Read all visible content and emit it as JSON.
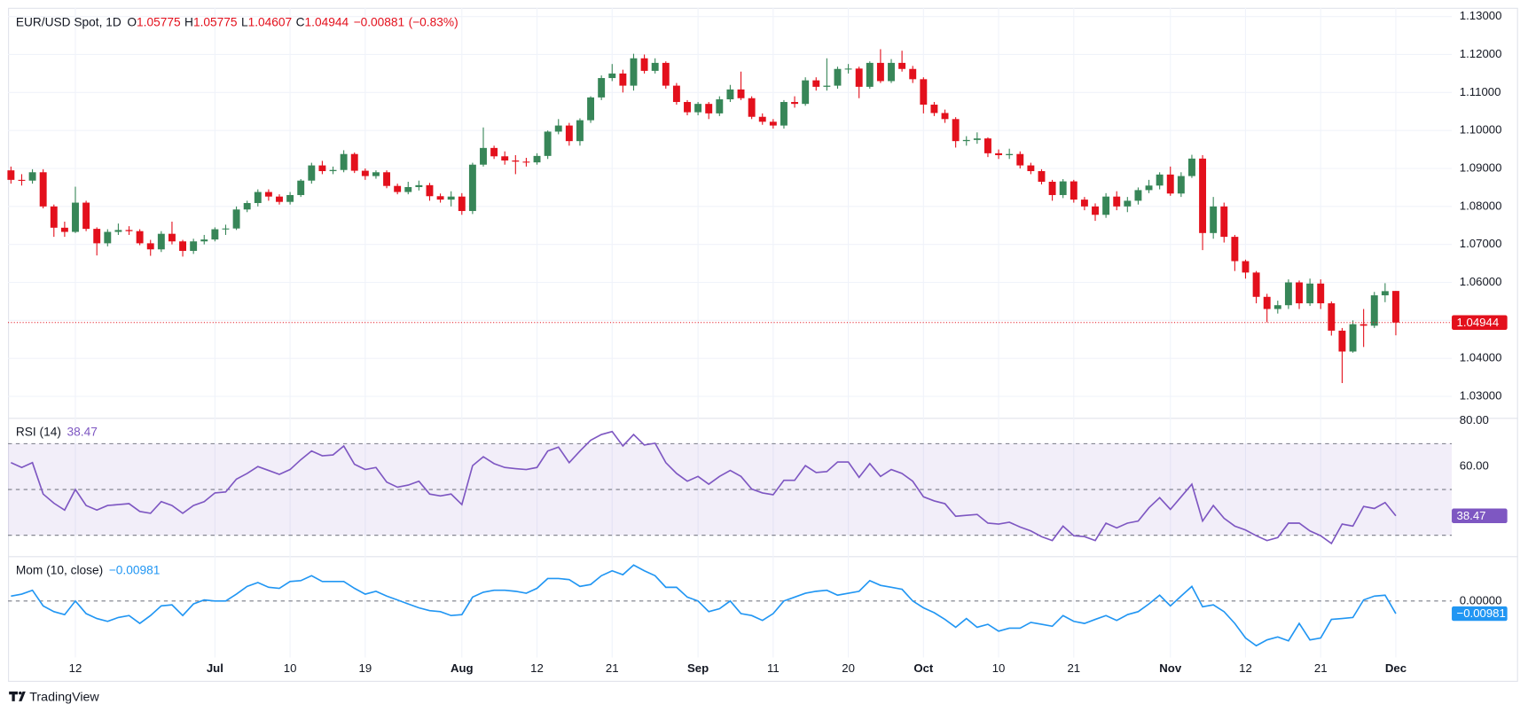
{
  "brand": "TradingView",
  "chart_data": [
    {
      "type": "candlestick",
      "title": "EUR/USD Spot, 1D",
      "ohlc_labels": [
        "O",
        "H",
        "L",
        "C"
      ],
      "change": "−0.00881",
      "change_percent": "(−0.83%)",
      "up_color": "#378658",
      "down_color": "#e3101c",
      "grid": true,
      "ylim": [
        1.0246,
        1.1323
      ],
      "yticks": [
        {
          "value": 1.03,
          "label": "1.03000"
        },
        {
          "value": 1.04,
          "label": "1.04000"
        },
        {
          "value": 1.05,
          "label": "1.05000"
        },
        {
          "value": 1.06,
          "label": "1.06000"
        },
        {
          "value": 1.07,
          "label": "1.07000"
        },
        {
          "value": 1.08,
          "label": "1.08000"
        },
        {
          "value": 1.09,
          "label": "1.09000"
        },
        {
          "value": 1.1,
          "label": "1.10000"
        },
        {
          "value": 1.11,
          "label": "1.11000"
        },
        {
          "value": 1.12,
          "label": "1.12000"
        },
        {
          "value": 1.13,
          "label": "1.13000"
        }
      ],
      "categories": [
        null,
        null,
        null,
        null,
        null,
        null,
        "12",
        null,
        null,
        null,
        null,
        null,
        null,
        null,
        null,
        null,
        null,
        null,
        null,
        "Jul",
        null,
        null,
        null,
        null,
        null,
        null,
        "10",
        null,
        null,
        null,
        null,
        null,
        null,
        "19",
        null,
        null,
        null,
        null,
        null,
        null,
        null,
        null,
        "Aug",
        null,
        null,
        null,
        null,
        null,
        null,
        "12",
        null,
        null,
        null,
        null,
        null,
        null,
        "21",
        null,
        null,
        null,
        null,
        null,
        null,
        null,
        "Sep",
        null,
        null,
        null,
        null,
        null,
        null,
        "11",
        null,
        null,
        null,
        null,
        null,
        null,
        "20",
        null,
        null,
        null,
        null,
        null,
        null,
        "Oct",
        null,
        null,
        null,
        null,
        null,
        null,
        "10",
        null,
        null,
        null,
        null,
        null,
        null,
        "21",
        null,
        null,
        null,
        null,
        null,
        null,
        null,
        null,
        "Nov",
        null,
        null,
        null,
        null,
        null,
        null,
        "12",
        null,
        null,
        null,
        null,
        null,
        null,
        "21",
        null,
        null,
        null,
        null,
        null,
        null,
        "Dec"
      ],
      "open": [
        1.0895,
        1.087,
        1.0868,
        1.089,
        1.08,
        1.0744,
        1.0733,
        1.081,
        1.0741,
        1.0703,
        1.0733,
        1.0738,
        1.0735,
        1.0703,
        1.0687,
        1.0728,
        1.0708,
        1.0683,
        1.0708,
        1.0713,
        1.074,
        1.0742,
        1.0792,
        1.0809,
        1.0838,
        1.0826,
        1.0812,
        1.083,
        1.0868,
        1.0908,
        1.0893,
        1.0896,
        1.0938,
        1.0894,
        1.088,
        1.089,
        1.0854,
        1.0838,
        1.0851,
        1.0856,
        1.0827,
        1.0818,
        1.0826,
        1.0788,
        1.091,
        1.0954,
        1.0932,
        1.0921,
        1.0918,
        1.0916,
        1.0933,
        1.0997,
        1.1013,
        1.0972,
        1.1027,
        1.1087,
        1.1138,
        1.115,
        1.1118,
        1.119,
        1.1157,
        1.1178,
        1.1118,
        1.1075,
        1.1048,
        1.107,
        1.1045,
        1.1082,
        1.1108,
        1.1085,
        1.1036,
        1.1023,
        1.1013,
        1.1075,
        1.107,
        1.1132,
        1.1115,
        1.1118,
        1.1162,
        1.1163,
        1.1115,
        1.1178,
        1.113,
        1.1178,
        1.1162,
        1.1135,
        1.1068,
        1.1046,
        1.103,
        1.0972,
        1.0975,
        1.0979,
        1.094,
        1.0935,
        1.0938,
        1.0908,
        1.0893,
        1.0865,
        1.083,
        1.0866,
        1.0818,
        1.08,
        1.0778,
        1.0826,
        1.08,
        1.0815,
        1.0843,
        1.0855,
        1.0884,
        1.0834,
        1.088,
        1.0926,
        1.073,
        1.08,
        1.072,
        1.0656,
        1.0626,
        1.0562,
        1.053,
        1.054,
        1.06,
        1.0545,
        1.0597,
        1.0545,
        1.0473,
        1.0418,
        1.049,
        1.0486,
        1.0566,
        1.05775
      ],
      "high": [
        1.0905,
        1.0885,
        1.0898,
        1.0898,
        1.0805,
        1.076,
        1.0852,
        1.0815,
        1.0745,
        1.074,
        1.0755,
        1.0748,
        1.074,
        1.0712,
        1.0735,
        1.076,
        1.0712,
        1.0715,
        1.0725,
        1.0745,
        1.0752,
        1.08,
        1.0815,
        1.0845,
        1.0845,
        1.0832,
        1.0838,
        1.0872,
        1.0915,
        1.092,
        1.0905,
        1.0948,
        1.0942,
        1.09,
        1.0895,
        1.0895,
        1.086,
        1.0865,
        1.0868,
        1.0862,
        1.0834,
        1.084,
        1.0835,
        1.0915,
        1.1008,
        1.096,
        1.0945,
        1.0935,
        1.0928,
        1.094,
        1.1,
        1.103,
        1.102,
        1.1032,
        1.109,
        1.1145,
        1.1175,
        1.116,
        1.1202,
        1.12,
        1.119,
        1.1182,
        1.1125,
        1.108,
        1.1075,
        1.1075,
        1.109,
        1.112,
        1.1155,
        1.109,
        1.1045,
        1.103,
        1.108,
        1.109,
        1.114,
        1.114,
        1.119,
        1.1168,
        1.1175,
        1.1168,
        1.1182,
        1.1214,
        1.1188,
        1.121,
        1.117,
        1.114,
        1.1075,
        1.1055,
        1.1035,
        1.0985,
        1.0995,
        1.0982,
        1.095,
        1.0952,
        1.0945,
        1.0915,
        1.0898,
        1.087,
        1.0872,
        1.087,
        1.0825,
        1.0808,
        1.0835,
        1.084,
        1.0825,
        1.085,
        1.087,
        1.089,
        1.0905,
        1.089,
        1.0936,
        1.0935,
        1.0825,
        1.081,
        1.0725,
        1.066,
        1.063,
        1.057,
        1.0552,
        1.0608,
        1.0605,
        1.061,
        1.0608,
        1.055,
        1.048,
        1.05,
        1.053,
        1.0575,
        1.0598,
        1.05775
      ],
      "low": [
        1.086,
        1.0855,
        1.086,
        1.0795,
        1.072,
        1.072,
        1.073,
        1.0735,
        1.0671,
        1.0695,
        1.0725,
        1.0725,
        1.0698,
        1.067,
        1.068,
        1.07,
        1.0668,
        1.0675,
        1.07,
        1.0708,
        1.0725,
        1.0738,
        1.0785,
        1.08,
        1.0815,
        1.0805,
        1.0805,
        1.0825,
        1.086,
        1.0885,
        1.0885,
        1.089,
        1.0888,
        1.087,
        1.0873,
        1.0848,
        1.0832,
        1.0832,
        1.0842,
        1.0815,
        1.081,
        1.08,
        1.0778,
        1.078,
        1.0905,
        1.0925,
        1.091,
        1.0885,
        1.0905,
        1.091,
        1.0925,
        1.099,
        1.096,
        1.096,
        1.102,
        1.108,
        1.113,
        1.11,
        1.1105,
        1.115,
        1.115,
        1.111,
        1.1068,
        1.104,
        1.104,
        1.103,
        1.1038,
        1.1075,
        1.108,
        1.103,
        1.1015,
        1.1005,
        1.1005,
        1.106,
        1.1065,
        1.1105,
        1.1105,
        1.111,
        1.115,
        1.1085,
        1.111,
        1.1125,
        1.1125,
        1.1155,
        1.1125,
        1.1045,
        1.1038,
        1.102,
        1.0955,
        1.096,
        1.0965,
        1.093,
        1.0925,
        1.0925,
        1.09,
        1.0885,
        1.0858,
        1.0815,
        1.0822,
        1.081,
        1.079,
        1.0762,
        1.077,
        1.079,
        1.0785,
        1.0805,
        1.0835,
        1.0845,
        1.0828,
        1.0825,
        1.0875,
        1.0685,
        1.0715,
        1.0705,
        1.063,
        1.061,
        1.0545,
        1.0495,
        1.0518,
        1.053,
        1.053,
        1.0538,
        1.053,
        1.046,
        1.0335,
        1.0415,
        1.043,
        1.048,
        1.0548,
        1.04607
      ],
      "close": [
        1.087,
        1.0868,
        1.089,
        1.08,
        1.0744,
        1.0733,
        1.081,
        1.0741,
        1.0703,
        1.0733,
        1.0738,
        1.0735,
        1.0703,
        1.0687,
        1.0728,
        1.0708,
        1.0683,
        1.0708,
        1.0713,
        1.074,
        1.0742,
        1.0792,
        1.0809,
        1.0838,
        1.0826,
        1.0812,
        1.083,
        1.0868,
        1.0908,
        1.0893,
        1.0896,
        1.0938,
        1.0894,
        1.088,
        1.089,
        1.0854,
        1.0838,
        1.0851,
        1.0856,
        1.0827,
        1.0818,
        1.0826,
        1.0788,
        1.091,
        1.0954,
        1.0932,
        1.0921,
        1.0918,
        1.0916,
        1.0933,
        1.0997,
        1.1013,
        1.0972,
        1.1027,
        1.1087,
        1.1138,
        1.115,
        1.1118,
        1.119,
        1.1157,
        1.1178,
        1.1118,
        1.1075,
        1.1048,
        1.107,
        1.1045,
        1.1082,
        1.1108,
        1.1085,
        1.1036,
        1.1023,
        1.1013,
        1.1075,
        1.107,
        1.1132,
        1.1115,
        1.1118,
        1.1162,
        1.1163,
        1.1115,
        1.1178,
        1.113,
        1.1178,
        1.1162,
        1.1135,
        1.1068,
        1.1046,
        1.103,
        1.0972,
        1.0975,
        1.0979,
        1.094,
        1.0935,
        1.0938,
        1.0908,
        1.0893,
        1.0865,
        1.083,
        1.0866,
        1.0818,
        1.08,
        1.0778,
        1.0826,
        1.08,
        1.0815,
        1.0843,
        1.0855,
        1.0884,
        1.0834,
        1.088,
        1.0926,
        1.073,
        1.08,
        1.072,
        1.0656,
        1.0626,
        1.0562,
        1.053,
        1.054,
        1.06,
        1.0545,
        1.0597,
        1.0545,
        1.0473,
        1.0418,
        1.049,
        1.0486,
        1.0566,
        1.0577,
        1.04944
      ]
    },
    {
      "type": "line",
      "title": "RSI (14)",
      "ylim": [
        21.3,
        80.85
      ],
      "yticks": [
        {
          "value": 80,
          "label": "80.00"
        },
        {
          "value": 60,
          "label": "60.00"
        }
      ],
      "levels": [
        70,
        50,
        30
      ],
      "band": [
        30,
        70
      ],
      "series": [
        {
          "color": "#7e57c2",
          "values": [
            61.7,
            59.6,
            61.7,
            48,
            44,
            41,
            50,
            43,
            41,
            43,
            43.4,
            43.8,
            40.4,
            39.6,
            44.7,
            43,
            39.6,
            43,
            44.7,
            48.5,
            48.9,
            54.5,
            57,
            60,
            58.3,
            56.6,
            58.7,
            63,
            66.8,
            64.7,
            65.1,
            69,
            61,
            58.7,
            59.6,
            53.2,
            51,
            51.9,
            53.6,
            48,
            47.2,
            48,
            43.4,
            60.4,
            64.3,
            61.3,
            59.6,
            59.1,
            58.7,
            59.6,
            66.8,
            68.5,
            61.7,
            66.8,
            71.5,
            74,
            75.3,
            69,
            74,
            69.4,
            70.2,
            61.7,
            57,
            53.6,
            55.7,
            52.3,
            55.7,
            58.3,
            55.7,
            50.2,
            48.5,
            47.7,
            54,
            54,
            60.4,
            57.4,
            57.8,
            62,
            62,
            55.3,
            61.3,
            55.7,
            58.7,
            57,
            53.6,
            46.8,
            45,
            43.8,
            38.3,
            38.7,
            39.1,
            35.3,
            34.9,
            35.7,
            33.6,
            31.9,
            29.4,
            27.7,
            34,
            29.8,
            29.4,
            27.7,
            35.3,
            33.2,
            35.3,
            36.2,
            42,
            46.4,
            41.3,
            46.8,
            52.3,
            36.2,
            43,
            37.4,
            34,
            32.3,
            29.8,
            27.7,
            29,
            35.3,
            35.3,
            31.9,
            29.8,
            26.4,
            34.9,
            34,
            42.6,
            41.7,
            44.3,
            38.47
          ]
        }
      ]
    },
    {
      "type": "line",
      "title": "Mom (10, close)",
      "ylim": [
        -0.0438,
        0.034
      ],
      "yticks": [
        {
          "value": 0,
          "label": "0.00000"
        }
      ],
      "levels": [
        0
      ],
      "series": [
        {
          "color": "#2196f3",
          "values": [
            0.0038,
            0.0053,
            0.0083,
            -0.0038,
            -0.0083,
            -0.0106,
            0,
            -0.0098,
            -0.0136,
            -0.0158,
            -0.0128,
            -0.0113,
            -0.0174,
            -0.0113,
            -0.0038,
            -0.003,
            -0.0113,
            -0.0023,
            0.0008,
            0,
            0,
            0.0053,
            0.0113,
            0.0143,
            0.0106,
            0.0098,
            0.0151,
            0.0158,
            0.0196,
            0.0151,
            0.0151,
            0.0151,
            0.0098,
            0.0053,
            0.0075,
            0.0038,
            0.0008,
            -0.0023,
            -0.0053,
            -0.0075,
            -0.0083,
            -0.0113,
            -0.0106,
            0.003,
            0.0068,
            0.0083,
            0.0083,
            0.0075,
            0.006,
            0.0098,
            0.0174,
            0.0174,
            0.0166,
            0.0113,
            0.0128,
            0.0196,
            0.0234,
            0.0204,
            0.0279,
            0.0234,
            0.0196,
            0.0106,
            0.0106,
            0.003,
            0,
            -0.0083,
            -0.006,
            0,
            -0.0098,
            -0.0113,
            -0.0151,
            -0.0098,
            0,
            0.003,
            0.006,
            0.0075,
            0.0083,
            0.0045,
            0.006,
            0.0075,
            0.0158,
            0.0121,
            0.0106,
            0.0091,
            0,
            -0.0053,
            -0.0091,
            -0.0143,
            -0.0204,
            -0.0136,
            -0.0204,
            -0.0181,
            -0.0234,
            -0.0211,
            -0.0211,
            -0.0166,
            -0.0181,
            -0.0196,
            -0.0113,
            -0.0158,
            -0.0174,
            -0.0143,
            -0.0113,
            -0.0151,
            -0.0106,
            -0.0083,
            -0.0023,
            0.0045,
            -0.0038,
            0.0038,
            0.0113,
            -0.0045,
            -0.003,
            -0.0083,
            -0.0174,
            -0.0287,
            -0.0347,
            -0.0302,
            -0.0279,
            -0.0309,
            -0.0174,
            -0.0302,
            -0.0287,
            -0.0143,
            -0.0136,
            -0.0128,
            0.0008,
            0.0038,
            0.0045,
            -0.00981
          ],
          "value_labels": [
            null,
            null,
            null,
            null,
            null,
            null,
            null,
            null,
            null,
            null,
            null,
            null,
            null,
            null,
            null,
            null,
            null,
            null,
            null,
            null,
            null,
            null,
            null,
            null,
            null,
            null,
            null,
            null,
            null,
            null,
            null,
            null,
            null,
            null,
            null,
            null,
            null,
            null,
            null,
            null,
            null,
            null,
            null,
            null,
            null,
            null,
            null,
            null,
            null,
            null,
            null,
            null,
            null,
            null,
            null,
            null,
            null,
            null,
            null,
            null,
            null,
            null,
            null,
            null,
            null,
            null,
            null,
            null,
            null,
            null,
            null,
            null,
            null,
            null,
            null,
            null,
            null,
            null,
            null,
            null,
            null,
            null,
            null,
            null,
            null,
            null,
            null,
            null,
            null,
            null,
            null,
            null,
            null,
            null,
            null,
            null,
            null,
            null,
            null,
            null,
            null,
            null,
            null,
            null,
            null,
            null,
            null,
            null,
            null,
            null,
            null,
            null,
            null,
            null,
            null,
            null,
            null,
            null,
            null,
            null,
            null,
            null,
            null,
            null,
            null,
            null,
            null,
            null,
            null,
            "−0.00981"
          ]
        }
      ]
    }
  ]
}
